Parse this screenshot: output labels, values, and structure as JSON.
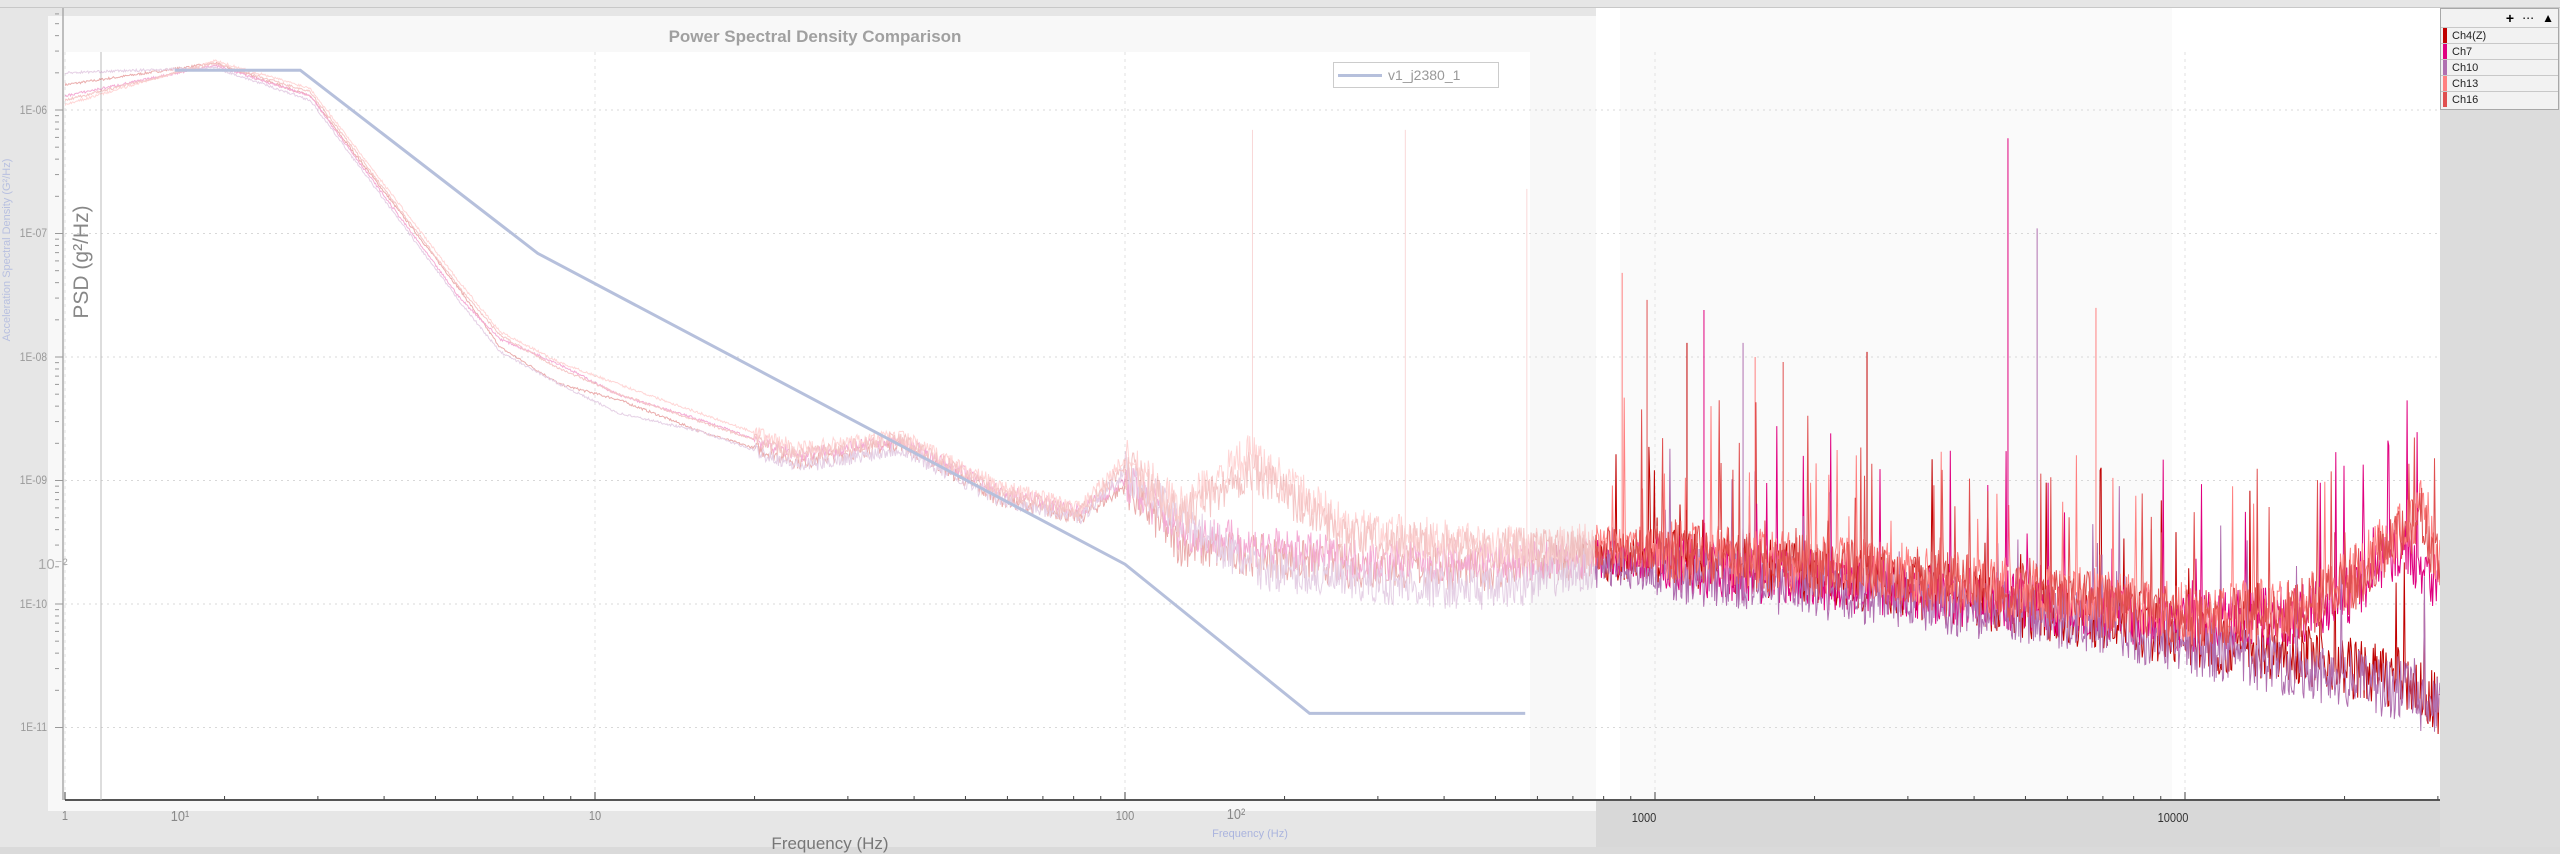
{
  "chart_data": {
    "type": "line",
    "title": "Power Spectral Density Comparison",
    "xlabel": "Frequency (Hz)",
    "xlabel_secondary": "Frequency (Hz)",
    "ylabel": "PSD (g²/Hz)",
    "ylabel_secondary": "Acceleration Spectral Density (G²/Hz)",
    "x_scale": "log",
    "y_scale": "log",
    "xlim": [
      1,
      30000
    ],
    "ylim": [
      5e-12,
      3e-06
    ],
    "grid": true,
    "y_ticks": [
      "1E-06",
      "1E-07",
      "1E-08",
      "1E-09",
      "1E-10",
      "1E-11"
    ],
    "y_tick_extra": "10⁻²",
    "x_ticks_left": [
      "1",
      "10¹",
      "10",
      "100",
      "10²"
    ],
    "x_ticks_right": [
      "1000",
      "10000"
    ],
    "reference": {
      "name": "v1_j2380_1",
      "color": "#b6c0dc",
      "points": [
        [
          1.61,
          2.1e-06
        ],
        [
          2.78,
          2.1e-06
        ],
        [
          7.8,
          6.9e-08
        ],
        [
          100,
          2.1e-10
        ],
        [
          223,
          1.3e-11
        ],
        [
          569,
          1.3e-11
        ]
      ]
    },
    "series": [
      {
        "name": "Ch4(Z)",
        "color": "#c00000",
        "points": [
          [
            1,
            1.6e-06
          ],
          [
            1.92,
            2.4e-06
          ],
          [
            2.9,
            1.3e-06
          ],
          [
            5.56,
            3.5e-08
          ],
          [
            6.62,
            1.2e-08
          ],
          [
            8.59,
            6e-09
          ],
          [
            11.1,
            4.5e-09
          ],
          [
            15.8,
            2.5e-09
          ],
          [
            24.4,
            1.4e-09
          ],
          [
            37.6,
            2e-09
          ],
          [
            58.1,
            7e-10
          ],
          [
            82.3,
            5e-10
          ],
          [
            100,
            9e-10
          ],
          [
            127,
            3e-10
          ],
          [
            172,
            2.5e-10
          ],
          [
            266,
            2e-10
          ],
          [
            510,
            1.9e-10
          ],
          [
            787,
            2.3e-10
          ],
          [
            1217,
            2.3e-10
          ],
          [
            2897,
            1.4e-10
          ],
          [
            6918,
            7.4e-11
          ],
          [
            10670,
            5e-11
          ],
          [
            16480,
            4e-11
          ],
          [
            20470,
            3e-11
          ],
          [
            25470,
            2.5e-11
          ],
          [
            30270,
            1.5e-11
          ]
        ]
      },
      {
        "name": "Ch7",
        "color": "#e0007f",
        "points": [
          [
            1,
            1.3e-06
          ],
          [
            1.92,
            2.3e-06
          ],
          [
            2.9,
            1.3e-06
          ],
          [
            5.56,
            3e-08
          ],
          [
            6.62,
            1.4e-08
          ],
          [
            8.59,
            8.7e-09
          ],
          [
            11.1,
            4.9e-09
          ],
          [
            15.8,
            3.1e-09
          ],
          [
            24.4,
            1.6e-09
          ],
          [
            37.6,
            2.1e-09
          ],
          [
            58.1,
            8.3e-10
          ],
          [
            82.3,
            5.7e-10
          ],
          [
            100,
            1e-09
          ],
          [
            127,
            4e-10
          ],
          [
            172,
            3e-10
          ],
          [
            266,
            2.3e-10
          ],
          [
            510,
            2.2e-10
          ],
          [
            787,
            2.3e-10
          ],
          [
            1217,
            2e-10
          ],
          [
            2897,
            1.3e-10
          ],
          [
            6918,
            9e-11
          ],
          [
            10670,
            7e-11
          ],
          [
            16480,
            8e-11
          ],
          [
            20470,
            1.2e-10
          ],
          [
            25470,
            3e-10
          ],
          [
            30270,
            1.5e-10
          ]
        ]
      },
      {
        "name": "Ch10",
        "color": "#b070b0",
        "points": [
          [
            1,
            2e-06
          ],
          [
            1.92,
            2.2e-06
          ],
          [
            2.9,
            1.2e-06
          ],
          [
            5.56,
            2.8e-08
          ],
          [
            6.62,
            1.1e-08
          ],
          [
            8.59,
            6e-09
          ],
          [
            11.1,
            3.5e-09
          ],
          [
            15.8,
            2.5e-09
          ],
          [
            24.4,
            1.3e-09
          ],
          [
            37.6,
            1.8e-09
          ],
          [
            58.1,
            7e-10
          ],
          [
            82.3,
            5e-10
          ],
          [
            100,
            1.2e-09
          ],
          [
            127,
            5e-10
          ],
          [
            172,
            2e-10
          ],
          [
            266,
            1.5e-10
          ],
          [
            510,
            1.3e-10
          ],
          [
            787,
            2e-10
          ],
          [
            1217,
            1.7e-10
          ],
          [
            2897,
            1.1e-10
          ],
          [
            6918,
            7e-11
          ],
          [
            10670,
            4.3e-11
          ],
          [
            16480,
            3e-11
          ],
          [
            20470,
            2.5e-11
          ],
          [
            25470,
            2e-11
          ],
          [
            30270,
            1.4e-11
          ]
        ]
      },
      {
        "name": "Ch13",
        "color": "#ff8080",
        "points": [
          [
            1,
            1.1e-06
          ],
          [
            1.92,
            2.5e-06
          ],
          [
            2.9,
            1.5e-06
          ],
          [
            5.56,
            4e-08
          ],
          [
            6.62,
            1.6e-08
          ],
          [
            8.59,
            9e-09
          ],
          [
            11.1,
            6e-09
          ],
          [
            15.8,
            3.5e-09
          ],
          [
            24.4,
            1.8e-09
          ],
          [
            37.6,
            2.3e-09
          ],
          [
            58.1,
            9e-10
          ],
          [
            82.3,
            6e-10
          ],
          [
            100,
            1.5e-09
          ],
          [
            127,
            6e-10
          ],
          [
            172,
            1.6e-09
          ],
          [
            266,
            4e-10
          ],
          [
            510,
            3e-10
          ],
          [
            787,
            3e-10
          ],
          [
            1217,
            2.6e-10
          ],
          [
            2897,
            1.8e-10
          ],
          [
            6918,
            1.1e-10
          ],
          [
            10670,
            8e-11
          ],
          [
            16480,
            1e-10
          ],
          [
            20470,
            1.6e-10
          ],
          [
            25470,
            4e-10
          ],
          [
            28000,
            6e-10
          ],
          [
            30270,
            2e-10
          ]
        ]
      },
      {
        "name": "Ch16",
        "color": "#e05050",
        "points": [
          [
            1,
            1.2e-06
          ],
          [
            1.92,
            2.4e-06
          ],
          [
            2.9,
            1.4e-06
          ],
          [
            5.56,
            3.6e-08
          ],
          [
            6.62,
            1.5e-08
          ],
          [
            8.59,
            8e-09
          ],
          [
            11.1,
            5e-09
          ],
          [
            15.8,
            3e-09
          ],
          [
            24.4,
            1.6e-09
          ],
          [
            37.6,
            2.2e-09
          ],
          [
            58.1,
            8e-10
          ],
          [
            82.3,
            5.5e-10
          ],
          [
            100,
            1.3e-09
          ],
          [
            127,
            5e-10
          ],
          [
            172,
            1.2e-09
          ],
          [
            266,
            3.5e-10
          ],
          [
            510,
            2.8e-10
          ],
          [
            787,
            2.8e-10
          ],
          [
            1217,
            2.5e-10
          ],
          [
            2897,
            1.7e-10
          ],
          [
            6918,
            1e-10
          ],
          [
            10670,
            7.5e-11
          ],
          [
            16480,
            9e-11
          ],
          [
            20470,
            1.4e-10
          ],
          [
            25470,
            3.5e-10
          ],
          [
            28000,
            5e-10
          ],
          [
            30270,
            1.8e-10
          ]
        ]
      }
    ],
    "spikes": [
      [
        174,
        6.9e-07
      ],
      [
        338,
        6.9e-07
      ],
      [
        573,
        2.3e-07
      ],
      [
        867,
        4.8e-08
      ],
      [
        966,
        2.9e-08
      ],
      [
        1149,
        1.3e-08
      ],
      [
        1237,
        2.4e-08
      ],
      [
        1466,
        1.3e-08
      ],
      [
        1545,
        1e-08
      ],
      [
        1745,
        9.1e-09
      ],
      [
        2512,
        1.1e-08
      ],
      [
        4634,
        5.9e-07
      ],
      [
        5260,
        1.1e-07
      ],
      [
        6792,
        2.5e-08
      ]
    ],
    "legend_position": "top-right"
  },
  "legend_panel": {
    "toolbar": {
      "add": "+",
      "more": "⋯",
      "collapse": "▲"
    },
    "items": [
      {
        "label": "Ch4(Z)",
        "color": "#c00000"
      },
      {
        "label": "Ch7",
        "color": "#e0007f"
      },
      {
        "label": "Ch10",
        "color": "#b070b0"
      },
      {
        "label": "Ch13",
        "color": "#ff8080"
      },
      {
        "label": "Ch16",
        "color": "#e05050"
      }
    ]
  }
}
